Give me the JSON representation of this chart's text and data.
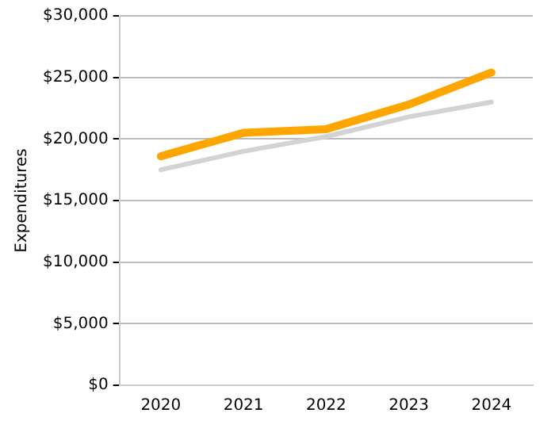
{
  "chart_data": {
    "type": "line",
    "ylabel": "Expenditures",
    "categories": [
      "2020",
      "2021",
      "2022",
      "2023",
      "2024"
    ],
    "series": [
      {
        "color": "#d3d3d3",
        "values": [
          17500,
          19000,
          20200,
          21800,
          23000
        ]
      },
      {
        "color": "#ffa500",
        "values": [
          18600,
          20500,
          20800,
          22800,
          25400
        ]
      }
    ],
    "ylim": [
      0,
      30000
    ],
    "yticks": [
      {
        "value": 0,
        "label": "$0"
      },
      {
        "value": 5000,
        "label": "$5,000"
      },
      {
        "value": 10000,
        "label": "$10,000"
      },
      {
        "value": 15000,
        "label": "$15,000"
      },
      {
        "value": 20000,
        "label": "$20,000"
      },
      {
        "value": 25000,
        "label": "$25,000"
      },
      {
        "value": 30000,
        "label": "$30,000"
      }
    ],
    "grid": "y",
    "legend": false,
    "marker": "none",
    "line_style": "solid"
  }
}
